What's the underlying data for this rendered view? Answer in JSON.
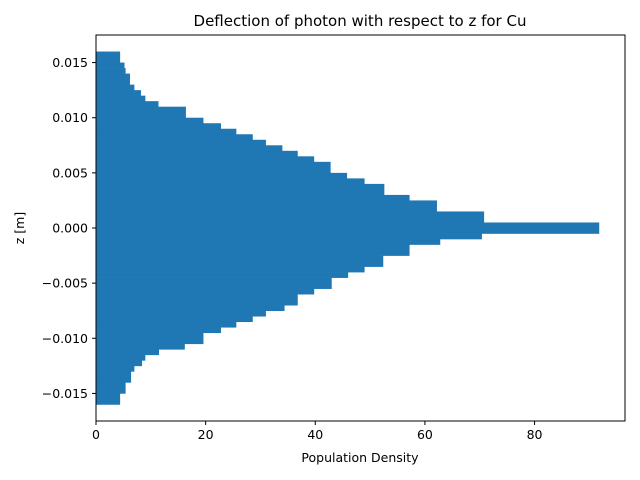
{
  "chart_data": {
    "type": "bar",
    "orientation": "horizontal",
    "title": "Deflection of photon with respect to z for Cu",
    "xlabel": "Population Density",
    "ylabel": "z [m]",
    "xlim": [
      0,
      96.5
    ],
    "ylim": [
      -0.0175,
      0.0175
    ],
    "grid": false,
    "bar_color": "#1f77b4",
    "xticks": [
      0,
      20,
      40,
      60,
      80
    ],
    "xtick_labels": [
      "0",
      "20",
      "40",
      "60",
      "80"
    ],
    "yticks": [
      -0.015,
      -0.01,
      -0.005,
      0.0,
      0.005,
      0.01,
      0.015
    ],
    "ytick_labels": [
      "−0.015",
      "−0.010",
      "−0.005",
      "0.000",
      "0.005",
      "0.010",
      "0.015"
    ],
    "bins": [
      {
        "z_low": -0.016,
        "z_high": -0.0155,
        "value": 4.4
      },
      {
        "z_low": -0.0155,
        "z_high": -0.015,
        "value": 4.4
      },
      {
        "z_low": -0.015,
        "z_high": -0.0145,
        "value": 5.4
      },
      {
        "z_low": -0.0145,
        "z_high": -0.014,
        "value": 5.4
      },
      {
        "z_low": -0.014,
        "z_high": -0.0135,
        "value": 6.4
      },
      {
        "z_low": -0.0135,
        "z_high": -0.013,
        "value": 6.4
      },
      {
        "z_low": -0.013,
        "z_high": -0.0125,
        "value": 7.0
      },
      {
        "z_low": -0.0125,
        "z_high": -0.012,
        "value": 8.4
      },
      {
        "z_low": -0.012,
        "z_high": -0.0115,
        "value": 9.0
      },
      {
        "z_low": -0.0115,
        "z_high": -0.011,
        "value": 11.5
      },
      {
        "z_low": -0.011,
        "z_high": -0.0105,
        "value": 16.2
      },
      {
        "z_low": -0.0105,
        "z_high": -0.0095,
        "value": 19.6
      },
      {
        "z_low": -0.0095,
        "z_high": -0.009,
        "value": 22.8
      },
      {
        "z_low": -0.009,
        "z_high": -0.0085,
        "value": 25.6
      },
      {
        "z_low": -0.0085,
        "z_high": -0.008,
        "value": 28.6
      },
      {
        "z_low": -0.008,
        "z_high": -0.0075,
        "value": 31.0
      },
      {
        "z_low": -0.0075,
        "z_high": -0.007,
        "value": 34.4
      },
      {
        "z_low": -0.007,
        "z_high": -0.006,
        "value": 36.8
      },
      {
        "z_low": -0.006,
        "z_high": -0.0055,
        "value": 39.8
      },
      {
        "z_low": -0.0055,
        "z_high": -0.0045,
        "value": 43.0
      },
      {
        "z_low": -0.0045,
        "z_high": -0.004,
        "value": 46.0
      },
      {
        "z_low": -0.004,
        "z_high": -0.0035,
        "value": 49.0
      },
      {
        "z_low": -0.0035,
        "z_high": -0.0025,
        "value": 52.4
      },
      {
        "z_low": -0.0025,
        "z_high": -0.0015,
        "value": 57.2
      },
      {
        "z_low": -0.0015,
        "z_high": -0.001,
        "value": 62.8
      },
      {
        "z_low": -0.001,
        "z_high": -0.0005,
        "value": 70.4
      },
      {
        "z_low": -0.0005,
        "z_high": 0.0005,
        "value": 91.8
      },
      {
        "z_low": 0.0005,
        "z_high": 0.0015,
        "value": 70.8
      },
      {
        "z_low": 0.0015,
        "z_high": 0.0025,
        "value": 62.2
      },
      {
        "z_low": 0.0025,
        "z_high": 0.003,
        "value": 57.2
      },
      {
        "z_low": 0.003,
        "z_high": 0.004,
        "value": 52.6
      },
      {
        "z_low": 0.004,
        "z_high": 0.0045,
        "value": 49.0
      },
      {
        "z_low": 0.0045,
        "z_high": 0.005,
        "value": 45.8
      },
      {
        "z_low": 0.005,
        "z_high": 0.006,
        "value": 42.8
      },
      {
        "z_low": 0.006,
        "z_high": 0.0065,
        "value": 39.8
      },
      {
        "z_low": 0.0065,
        "z_high": 0.007,
        "value": 36.8
      },
      {
        "z_low": 0.007,
        "z_high": 0.0075,
        "value": 34.0
      },
      {
        "z_low": 0.0075,
        "z_high": 0.008,
        "value": 31.0
      },
      {
        "z_low": 0.008,
        "z_high": 0.0085,
        "value": 28.6
      },
      {
        "z_low": 0.0085,
        "z_high": 0.009,
        "value": 25.6
      },
      {
        "z_low": 0.009,
        "z_high": 0.0095,
        "value": 22.8
      },
      {
        "z_low": 0.0095,
        "z_high": 0.01,
        "value": 19.6
      },
      {
        "z_low": 0.01,
        "z_high": 0.011,
        "value": 16.4
      },
      {
        "z_low": 0.011,
        "z_high": 0.0115,
        "value": 11.4
      },
      {
        "z_low": 0.0115,
        "z_high": 0.012,
        "value": 9.0
      },
      {
        "z_low": 0.012,
        "z_high": 0.0125,
        "value": 8.2
      },
      {
        "z_low": 0.0125,
        "z_high": 0.013,
        "value": 7.0
      },
      {
        "z_low": 0.013,
        "z_high": 0.014,
        "value": 6.2
      },
      {
        "z_low": 0.014,
        "z_high": 0.0145,
        "value": 5.4
      },
      {
        "z_low": 0.0145,
        "z_high": 0.015,
        "value": 5.2
      },
      {
        "z_low": 0.015,
        "z_high": 0.016,
        "value": 4.4
      }
    ]
  }
}
